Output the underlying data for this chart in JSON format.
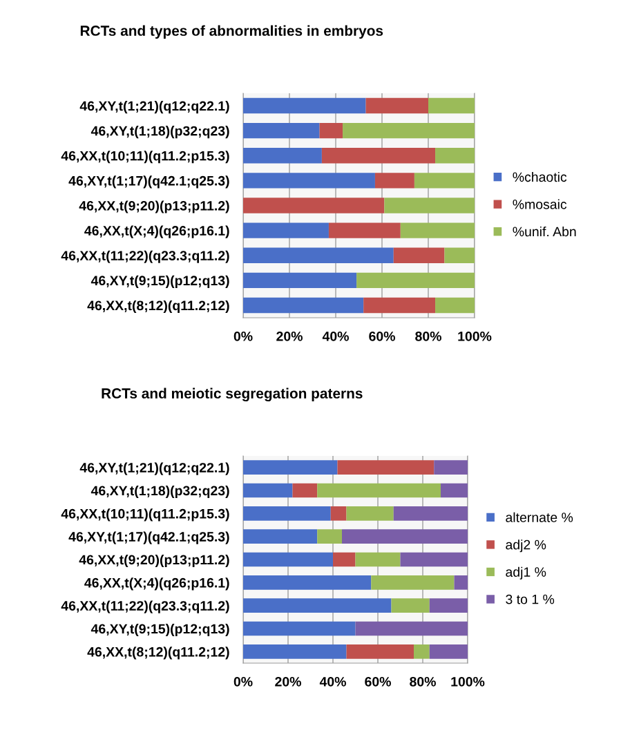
{
  "chart_data": [
    {
      "type": "bar",
      "orientation": "horizontal",
      "stacked": true,
      "title": "RCTs and types of abnormalities in embryos",
      "categories": [
        "46,XY,t(1;21)(q12;q22.1)",
        "46,XY,t(1;18)(p32;q23)",
        "46,XX,t(10;11)(q11.2;p15.3)",
        "46,XY,t(1;17)(q42.1;q25.3)",
        "46,XX,t(9;20)(p13;p11.2)",
        "46,XX,t(X;4)(q26;p16.1)",
        "46,XX,t(11;22)(q23.3;q11.2)",
        "46,XY,t(9;15)(p12;q13)",
        "46,XX,t(8;12)(q11.2;12)"
      ],
      "series": [
        {
          "name": "%chaotic",
          "color": "#4a6fc8",
          "values": [
            53,
            33,
            34,
            57,
            0,
            37,
            65,
            49,
            52
          ]
        },
        {
          "name": "%mosaic",
          "color": "#c0504d",
          "values": [
            27,
            10,
            49,
            17,
            61,
            31,
            22,
            0,
            31
          ]
        },
        {
          "name": "%unif. Abn",
          "color": "#9bbb59",
          "values": [
            20,
            57,
            17,
            26,
            39,
            32,
            13,
            51,
            17
          ]
        }
      ],
      "xlim": [
        0,
        100
      ],
      "xticks": [
        {
          "value": 0,
          "label": "0%"
        },
        {
          "value": 20,
          "label": "20%"
        },
        {
          "value": 40,
          "label": "40%"
        },
        {
          "value": 60,
          "label": "60%"
        },
        {
          "value": 80,
          "label": "80%"
        },
        {
          "value": 100,
          "label": "100%"
        }
      ],
      "grid": "x",
      "legend": "right"
    },
    {
      "type": "bar",
      "orientation": "horizontal",
      "stacked": true,
      "title": "RCTs and meiotic segregation paterns",
      "categories": [
        "46,XY,t(1;21)(q12;q22.1)",
        "46,XY,t(1;18)(p32;q23)",
        "46,XX,t(10;11)(q11.2;p15.3)",
        "46,XY,t(1;17)(q42.1;q25.3)",
        "46,XX,t(9;20)(p13;p11.2)",
        "46,XX,t(X;4)(q26;p16.1)",
        "46,XX,t(11;22)(q23.3;q11.2)",
        "46,XY,t(9;15)(p12;q13)",
        "46,XX,t(8;12)(q11.2;12)"
      ],
      "series": [
        {
          "name": "alternate %",
          "color": "#4a6fc8",
          "values": [
            42,
            22,
            39,
            33,
            40,
            57,
            66,
            50,
            46
          ]
        },
        {
          "name": "adj2 %",
          "color": "#c0504d",
          "values": [
            43,
            11,
            7,
            0,
            10,
            0,
            0,
            0,
            30
          ]
        },
        {
          "name": "adj1 %",
          "color": "#9bbb59",
          "values": [
            0,
            55,
            21,
            11,
            20,
            37,
            17,
            0,
            7
          ]
        },
        {
          "name": "3 to 1 %",
          "color": "#7a5ea8",
          "values": [
            15,
            12,
            33,
            56,
            30,
            6,
            17,
            50,
            17
          ]
        }
      ],
      "xlim": [
        0,
        100
      ],
      "xticks": [
        {
          "value": 0,
          "label": "0%"
        },
        {
          "value": 20,
          "label": "20%"
        },
        {
          "value": 40,
          "label": "40%"
        },
        {
          "value": 60,
          "label": "60%"
        },
        {
          "value": 80,
          "label": "80%"
        },
        {
          "value": 100,
          "label": "100%"
        }
      ],
      "grid": "x",
      "legend": "right"
    }
  ]
}
